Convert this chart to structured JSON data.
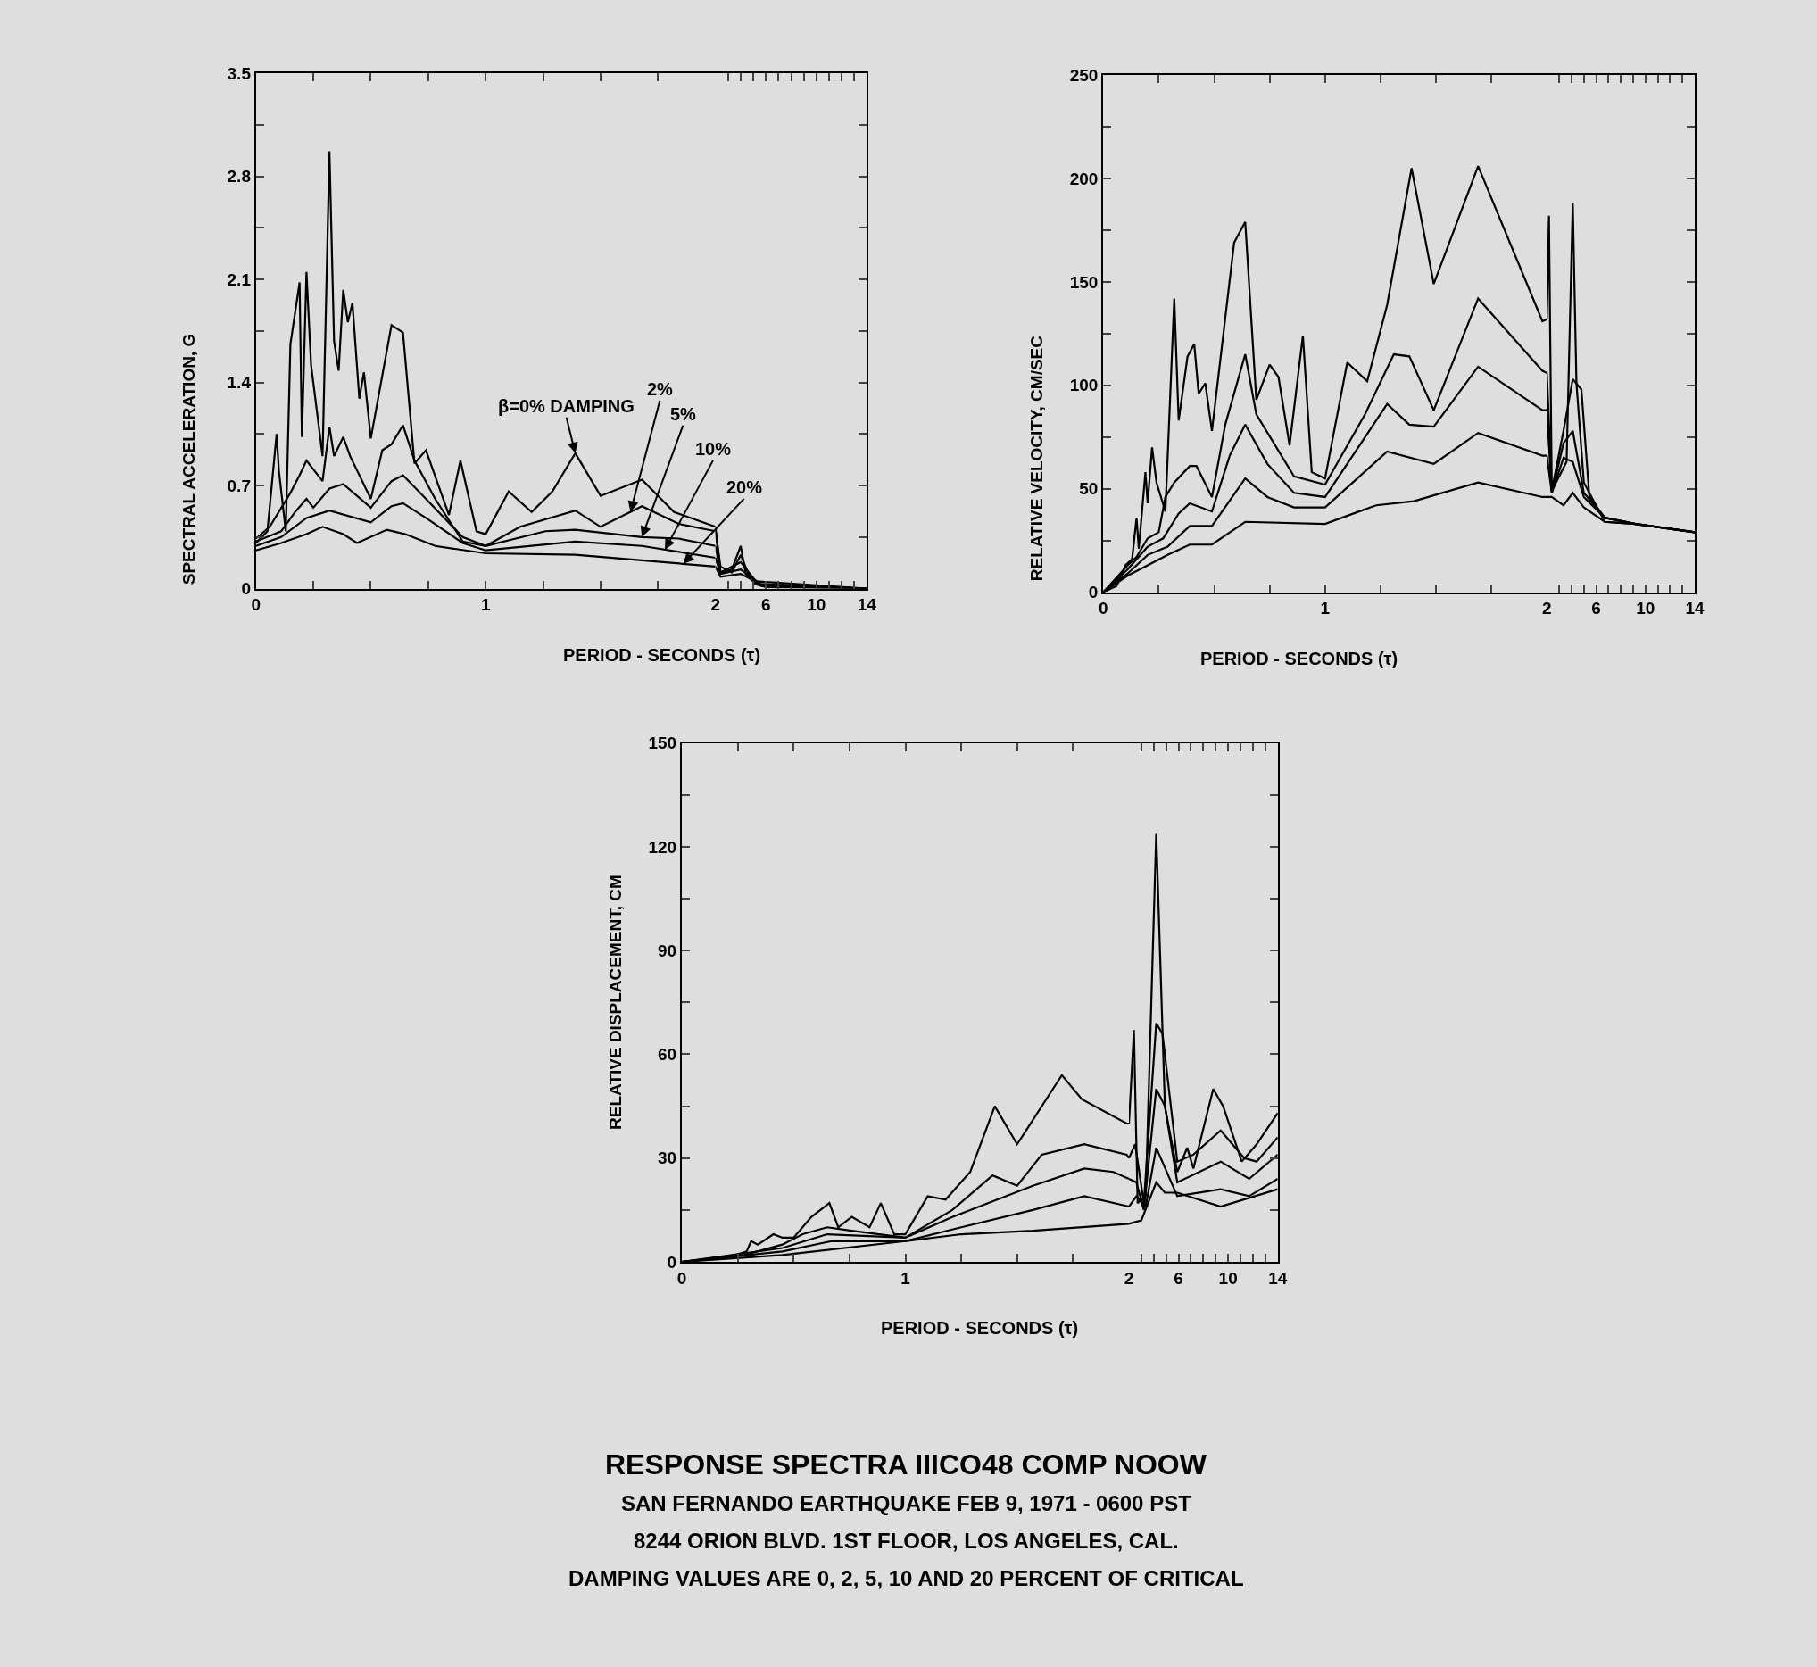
{
  "chart_data": [
    {
      "type": "line",
      "ylabel": "SPECTRAL ACCELERATION, G",
      "xlabel": "PERIOD - SECONDS (τ)",
      "xlim": [
        0,
        2
      ],
      "ylim": [
        0,
        3.5
      ],
      "xticks": [
        0,
        {
          "value": 0.25,
          "label": null
        },
        {
          "value": 0.5,
          "label": null
        },
        {
          "value": 0.75,
          "label": null
        },
        1,
        {
          "value": 1.25,
          "label": null
        },
        {
          "value": 1.5,
          "label": null
        },
        {
          "value": 1.75,
          "label": null
        },
        2
      ],
      "yticks": [
        0,
        {
          "value": 0.35,
          "label": null
        },
        0.7,
        {
          "value": 1.05,
          "label": null
        },
        1.4,
        {
          "value": 1.75,
          "label": null
        },
        2.1,
        {
          "value": 2.45,
          "label": null
        },
        2.8,
        {
          "value": 3.15,
          "label": null
        },
        3.5
      ],
      "series": [
        {
          "name": "β=0% DAMPING",
          "color": "#000000",
          "x": [
            0,
            0.05,
            0.09,
            0.1,
            0.13,
            0.15,
            0.19,
            0.2,
            0.22,
            0.24,
            0.29,
            0.32,
            0.34,
            0.36,
            0.38,
            0.4,
            0.42,
            0.45,
            0.47,
            0.5,
            0.59,
            0.64,
            0.69,
            0.74,
            0.84,
            0.89,
            0.96,
            1.0,
            1.1,
            1.2,
            1.29,
            1.39,
            1.5,
            1.68,
            1.82,
            2.0
          ],
          "values": [
            0.31,
            0.39,
            1.05,
            0.8,
            0.39,
            1.66,
            2.08,
            1.03,
            2.15,
            1.52,
            0.9,
            2.97,
            1.68,
            1.48,
            2.03,
            1.81,
            1.94,
            1.29,
            1.47,
            1.02,
            1.79,
            1.74,
            0.85,
            0.94,
            0.5,
            0.87,
            0.39,
            0.37,
            0.66,
            0.52,
            0.66,
            0.92,
            0.63,
            0.74,
            0.52,
            0.42
          ]
        },
        {
          "name": "2%",
          "color": "#000000",
          "x": [
            0,
            0.06,
            0.15,
            0.19,
            0.22,
            0.29,
            0.32,
            0.34,
            0.38,
            0.41,
            0.5,
            0.55,
            0.59,
            0.64,
            0.69,
            0.78,
            0.9,
            1.0,
            1.15,
            1.39,
            1.5,
            1.68,
            1.84,
            2.0
          ],
          "values": [
            0.34,
            0.42,
            0.65,
            0.77,
            0.87,
            0.73,
            1.1,
            0.9,
            1.03,
            0.9,
            0.61,
            0.94,
            0.98,
            1.11,
            0.87,
            0.61,
            0.32,
            0.29,
            0.42,
            0.53,
            0.42,
            0.56,
            0.44,
            0.39
          ]
        },
        {
          "name": "5%",
          "color": "#000000",
          "x": [
            0,
            0.11,
            0.17,
            0.22,
            0.25,
            0.32,
            0.38,
            0.5,
            0.59,
            0.64,
            0.74,
            0.9,
            1.0,
            1.26,
            1.39,
            1.68,
            1.84,
            2.0
          ],
          "values": [
            0.32,
            0.39,
            0.52,
            0.61,
            0.55,
            0.68,
            0.71,
            0.55,
            0.73,
            0.77,
            0.61,
            0.35,
            0.29,
            0.39,
            0.4,
            0.35,
            0.34,
            0.29
          ]
        },
        {
          "name": "10%",
          "color": "#000000",
          "x": [
            0,
            0.11,
            0.22,
            0.32,
            0.5,
            0.59,
            0.64,
            0.74,
            0.9,
            1.0,
            1.39,
            1.68,
            2.0
          ],
          "values": [
            0.29,
            0.35,
            0.48,
            0.53,
            0.45,
            0.56,
            0.58,
            0.48,
            0.31,
            0.26,
            0.32,
            0.29,
            0.21
          ]
        },
        {
          "name": "20%",
          "color": "#000000",
          "x": [
            0,
            0.11,
            0.22,
            0.29,
            0.38,
            0.44,
            0.57,
            0.65,
            0.78,
            1.0,
            1.39,
            2.0
          ],
          "values": [
            0.26,
            0.31,
            0.37,
            0.42,
            0.37,
            0.31,
            0.4,
            0.37,
            0.29,
            0.24,
            0.23,
            0.15
          ]
        }
      ]
    },
    {
      "type": "line",
      "tick_labels": "x",
      "xlim": [
        2,
        14
      ],
      "ylim": [
        0,
        3.5
      ],
      "xticks": [
        {
          "value": 3,
          "label": null
        },
        {
          "value": 4,
          "label": null
        },
        {
          "value": 5,
          "label": null
        },
        6,
        {
          "value": 7,
          "label": null
        },
        {
          "value": 8,
          "label": null
        },
        {
          "value": 9,
          "label": null
        },
        10,
        {
          "value": 11,
          "label": null
        },
        {
          "value": 12,
          "label": null
        },
        {
          "value": 13,
          "label": null
        },
        14
      ],
      "yticks": [
        0,
        {
          "value": 0.35,
          "label": null
        },
        0.7,
        {
          "value": 1.05,
          "label": null
        },
        1.4,
        {
          "value": 1.75,
          "label": null
        },
        2.1,
        {
          "value": 2.45,
          "label": null
        },
        2.8,
        {
          "value": 3.15,
          "label": null
        },
        3.5
      ],
      "series": [
        {
          "color": "#000000",
          "x": [
            2,
            2.4,
            3.3,
            4.0,
            4.4,
            5.2,
            6,
            14
          ],
          "values": [
            0.42,
            0.11,
            0.13,
            0.29,
            0.1,
            0.03,
            0.01,
            0
          ]
        },
        {
          "color": "#000000",
          "x": [
            2,
            2.4,
            3.3,
            4.0,
            4.7,
            5.6,
            14
          ],
          "values": [
            0.39,
            0.15,
            0.11,
            0.23,
            0.08,
            0.02,
            0
          ]
        },
        {
          "color": "#000000",
          "x": [
            2,
            2.4,
            4.0,
            5.2,
            14
          ],
          "values": [
            0.29,
            0.11,
            0.18,
            0.05,
            0
          ]
        },
        {
          "color": "#000000",
          "x": [
            2,
            2.4,
            4.0,
            5.6,
            14
          ],
          "values": [
            0.21,
            0.1,
            0.13,
            0.03,
            0
          ]
        },
        {
          "color": "#000000",
          "x": [
            2,
            2.4,
            4.0,
            5.6,
            14
          ],
          "values": [
            0.15,
            0.08,
            0.1,
            0.03,
            0
          ]
        }
      ]
    },
    {
      "type": "line",
      "ylabel": "RELATIVE VELOCITY, CM/SEC",
      "xlabel": "PERIOD - SECONDS (τ)",
      "xlim": [
        0,
        2
      ],
      "ylim": [
        0,
        250
      ],
      "xticks": [
        0,
        {
          "value": 0.25,
          "label": null
        },
        {
          "value": 0.5,
          "label": null
        },
        {
          "value": 0.75,
          "label": null
        },
        1,
        {
          "value": 1.25,
          "label": null
        },
        {
          "value": 1.5,
          "label": null
        },
        {
          "value": 1.75,
          "label": null
        },
        2
      ],
      "yticks": [
        0,
        {
          "value": 25,
          "label": null
        },
        50,
        {
          "value": 75,
          "label": null
        },
        100,
        {
          "value": 125,
          "label": null
        },
        150,
        {
          "value": 175,
          "label": null
        },
        200,
        {
          "value": 225,
          "label": null
        },
        250
      ],
      "series": [
        {
          "color": "#000000",
          "x": [
            0,
            0.06,
            0.1,
            0.13,
            0.15,
            0.16,
            0.19,
            0.2,
            0.22,
            0.24,
            0.28,
            0.32,
            0.34,
            0.38,
            0.41,
            0.43,
            0.46,
            0.49,
            0.59,
            0.64,
            0.69,
            0.75,
            0.79,
            0.84,
            0.9,
            0.94,
            1.0,
            1.1,
            1.19,
            1.28,
            1.39,
            1.49,
            1.69,
            1.98,
            2.0
          ],
          "values": [
            0,
            3,
            13,
            16,
            36,
            21,
            58,
            43,
            70,
            53,
            39,
            142,
            83,
            114,
            120,
            96,
            101,
            78,
            169,
            179,
            93,
            110,
            104,
            71,
            124,
            58,
            55,
            111,
            102,
            139,
            205,
            149,
            206,
            131,
            132
          ]
        },
        {
          "color": "#000000",
          "x": [
            0,
            0.11,
            0.15,
            0.2,
            0.25,
            0.28,
            0.32,
            0.39,
            0.42,
            0.49,
            0.55,
            0.64,
            0.69,
            0.86,
            1.0,
            1.18,
            1.31,
            1.38,
            1.49,
            1.69,
            1.98,
            2.0
          ],
          "values": [
            0,
            13,
            17,
            26,
            29,
            46,
            53,
            61,
            61,
            46,
            81,
            115,
            86,
            56,
            52,
            86,
            115,
            114,
            88,
            142,
            107,
            106
          ]
        },
        {
          "color": "#000000",
          "x": [
            0,
            0.11,
            0.2,
            0.27,
            0.34,
            0.39,
            0.49,
            0.57,
            0.64,
            0.74,
            0.86,
            1.0,
            1.28,
            1.38,
            1.49,
            1.69,
            1.98,
            2.0
          ],
          "values": [
            0,
            11,
            22,
            26,
            38,
            43,
            39,
            66,
            81,
            62,
            48,
            46,
            91,
            81,
            80,
            109,
            88,
            88
          ]
        },
        {
          "color": "#000000",
          "x": [
            0,
            0.11,
            0.2,
            0.29,
            0.39,
            0.49,
            0.64,
            0.74,
            0.86,
            1.0,
            1.28,
            1.49,
            1.69,
            1.98,
            2.0
          ],
          "values": [
            0,
            9,
            18,
            22,
            32,
            32,
            55,
            46,
            41,
            41,
            68,
            62,
            77,
            66,
            66
          ]
        },
        {
          "color": "#000000",
          "x": [
            0,
            0.11,
            0.2,
            0.29,
            0.39,
            0.49,
            0.64,
            1.0,
            1.23,
            1.4,
            1.69,
            1.98,
            2.0
          ],
          "values": [
            0,
            8,
            13,
            18,
            23,
            23,
            34,
            33,
            42,
            44,
            53,
            46,
            46
          ]
        }
      ]
    },
    {
      "type": "line",
      "tick_labels": "x",
      "xlim": [
        2,
        14
      ],
      "ylim": [
        0,
        250
      ],
      "xticks": [
        {
          "value": 3,
          "label": null
        },
        {
          "value": 4,
          "label": null
        },
        {
          "value": 5,
          "label": null
        },
        6,
        {
          "value": 7,
          "label": null
        },
        {
          "value": 8,
          "label": null
        },
        {
          "value": 9,
          "label": null
        },
        10,
        {
          "value": 11,
          "label": null
        },
        {
          "value": 12,
          "label": null
        },
        {
          "value": 13,
          "label": null
        },
        14
      ],
      "yticks": [
        0,
        {
          "value": 25,
          "label": null
        },
        50,
        {
          "value": 75,
          "label": null
        },
        100,
        {
          "value": 125,
          "label": null
        },
        150,
        {
          "value": 175,
          "label": null
        },
        200,
        {
          "value": 225,
          "label": null
        },
        250
      ],
      "series": [
        {
          "color": "#000000",
          "x": [
            2,
            2.17,
            2.4,
            3.6,
            4.1,
            4.4,
            5.0,
            6.7,
            9.2,
            14
          ],
          "values": [
            132,
            182,
            49,
            63,
            188,
            101,
            53,
            34,
            33,
            29
          ]
        },
        {
          "color": "#000000",
          "x": [
            2,
            2.4,
            3.35,
            4.1,
            4.8,
            5.45,
            6.7,
            9.2,
            14
          ],
          "values": [
            106,
            49,
            78,
            103,
            98,
            46,
            36,
            33,
            29
          ]
        },
        {
          "color": "#000000",
          "x": [
            2,
            2.4,
            3.35,
            4.1,
            5.0,
            6.7,
            9.2,
            14
          ],
          "values": [
            88,
            48,
            72,
            78,
            48,
            36,
            33,
            29
          ]
        },
        {
          "color": "#000000",
          "x": [
            2,
            2.4,
            3.35,
            4.1,
            5.0,
            6.7,
            9.2,
            14
          ],
          "values": [
            66,
            48,
            65,
            63,
            46,
            36,
            33,
            29
          ]
        },
        {
          "color": "#000000",
          "x": [
            2,
            2.4,
            3.35,
            4.1,
            5.0,
            6.7,
            9.2,
            14
          ],
          "values": [
            46,
            46,
            42,
            48,
            41,
            34,
            33,
            29
          ]
        }
      ]
    },
    {
      "type": "line",
      "ylabel": "RELATIVE DISPLACEMENT, CM",
      "xlabel": "PERIOD - SECONDS (τ)",
      "xlim": [
        0,
        2
      ],
      "ylim": [
        0,
        150
      ],
      "title": "RESPONSE SPECTRA IIICO48 COMP NOOW",
      "subtitle": "SAN FERNANDO EARTHQUAKE FEB 9, 1971 - 0600 PST",
      "annotations": [
        "8244 ORION BLVD. 1ST FLOOR, LOS ANGELES, CAL.",
        "DAMPING VALUES ARE 0, 2, 5, 10 AND 20 PERCENT OF CRITICAL"
      ],
      "xticks": [
        0,
        {
          "value": 0.25,
          "label": null
        },
        {
          "value": 0.5,
          "label": null
        },
        {
          "value": 0.75,
          "label": null
        },
        1,
        {
          "value": 1.25,
          "label": null
        },
        {
          "value": 1.5,
          "label": null
        },
        {
          "value": 1.75,
          "label": null
        },
        2
      ],
      "yticks": [
        0,
        {
          "value": 15,
          "label": null
        },
        30,
        {
          "value": 45,
          "label": null
        },
        60,
        {
          "value": 75,
          "label": null
        },
        90,
        {
          "value": 105,
          "label": null
        },
        120,
        {
          "value": 135,
          "label": null
        },
        150
      ],
      "series": [
        {
          "color": "#000000",
          "x": [
            0,
            0.13,
            0.24,
            0.29,
            0.31,
            0.34,
            0.41,
            0.45,
            0.5,
            0.58,
            0.66,
            0.7,
            0.76,
            0.84,
            0.89,
            0.95,
            1.0,
            1.1,
            1.18,
            1.29,
            1.4,
            1.5,
            1.7,
            1.79,
            1.99,
            2.0
          ],
          "values": [
            0,
            1,
            2,
            3,
            6,
            5,
            8,
            7,
            7,
            13,
            17,
            10,
            13,
            10,
            17,
            8,
            8,
            19,
            18,
            26,
            45,
            34,
            54,
            47,
            40,
            40
          ]
        },
        {
          "color": "#000000",
          "x": [
            0,
            0.28,
            0.45,
            0.54,
            0.65,
            0.76,
            1.0,
            1.21,
            1.39,
            1.5,
            1.61,
            1.8,
            1.99,
            2.0
          ],
          "values": [
            0,
            2,
            5,
            8,
            10,
            9,
            7,
            15,
            25,
            22,
            31,
            34,
            31,
            30
          ]
        },
        {
          "color": "#000000",
          "x": [
            0,
            0.45,
            0.65,
            1.0,
            1.21,
            1.57,
            1.8,
            1.93,
            2.0
          ],
          "values": [
            0,
            4,
            8,
            7,
            13,
            22,
            27,
            26,
            24
          ]
        },
        {
          "color": "#000000",
          "x": [
            0,
            0.45,
            0.67,
            1.0,
            1.25,
            1.57,
            1.8,
            2.0
          ],
          "values": [
            0,
            3,
            6,
            6,
            10,
            15,
            19,
            16
          ]
        },
        {
          "color": "#000000",
          "x": [
            0,
            0.45,
            1.0,
            1.25,
            1.57,
            2.0
          ],
          "values": [
            0,
            2,
            6,
            8,
            9,
            11
          ]
        }
      ]
    },
    {
      "type": "line",
      "tick_labels": "x",
      "xlim": [
        2,
        14
      ],
      "ylim": [
        0,
        150
      ],
      "xticks": [
        {
          "value": 3,
          "label": null
        },
        {
          "value": 4,
          "label": null
        },
        {
          "value": 5,
          "label": null
        },
        6,
        {
          "value": 7,
          "label": null
        },
        {
          "value": 8,
          "label": null
        },
        {
          "value": 9,
          "label": null
        },
        10,
        {
          "value": 11,
          "label": null
        },
        {
          "value": 12,
          "label": null
        },
        {
          "value": 13,
          "label": null
        },
        14
      ],
      "yticks": [
        0,
        {
          "value": 15,
          "label": null
        },
        30,
        {
          "value": 45,
          "label": null
        },
        60,
        {
          "value": 75,
          "label": null
        },
        90,
        {
          "value": 105,
          "label": null
        },
        120,
        {
          "value": 135,
          "label": null
        },
        150
      ],
      "series": [
        {
          "color": "#000000",
          "x": [
            2,
            2.4,
            2.7,
            3.35,
            4.2,
            4.9,
            5.9,
            6.7,
            7.2,
            8.8,
            9.6,
            11.1,
            12.3,
            14
          ],
          "values": [
            40,
            67,
            17,
            19,
            124,
            45,
            26,
            33,
            27,
            50,
            45,
            29,
            34,
            43
          ]
        },
        {
          "color": "#000000",
          "x": [
            2,
            2.5,
            3.2,
            4.2,
            4.7,
            5.9,
            7.2,
            9.4,
            11.3,
            12.3,
            14
          ],
          "values": [
            30,
            34,
            17,
            69,
            66,
            29,
            31,
            38,
            30,
            29,
            36
          ]
        },
        {
          "color": "#000000",
          "x": [
            2,
            2.6,
            3.2,
            4.2,
            4.9,
            5.9,
            9.4,
            11.7,
            14
          ],
          "values": [
            24,
            23,
            15,
            50,
            45,
            23,
            29,
            24,
            31
          ]
        },
        {
          "color": "#000000",
          "x": [
            2,
            2.6,
            3.35,
            4.2,
            5.9,
            9.4,
            11.7,
            14
          ],
          "values": [
            16,
            19,
            16,
            33,
            19,
            21,
            19,
            24
          ]
        },
        {
          "color": "#000000",
          "x": [
            2,
            3.0,
            4.2,
            4.9,
            5.9,
            9.4,
            14
          ],
          "values": [
            11,
            12,
            23,
            20,
            20,
            16,
            21
          ]
        }
      ]
    }
  ]
}
